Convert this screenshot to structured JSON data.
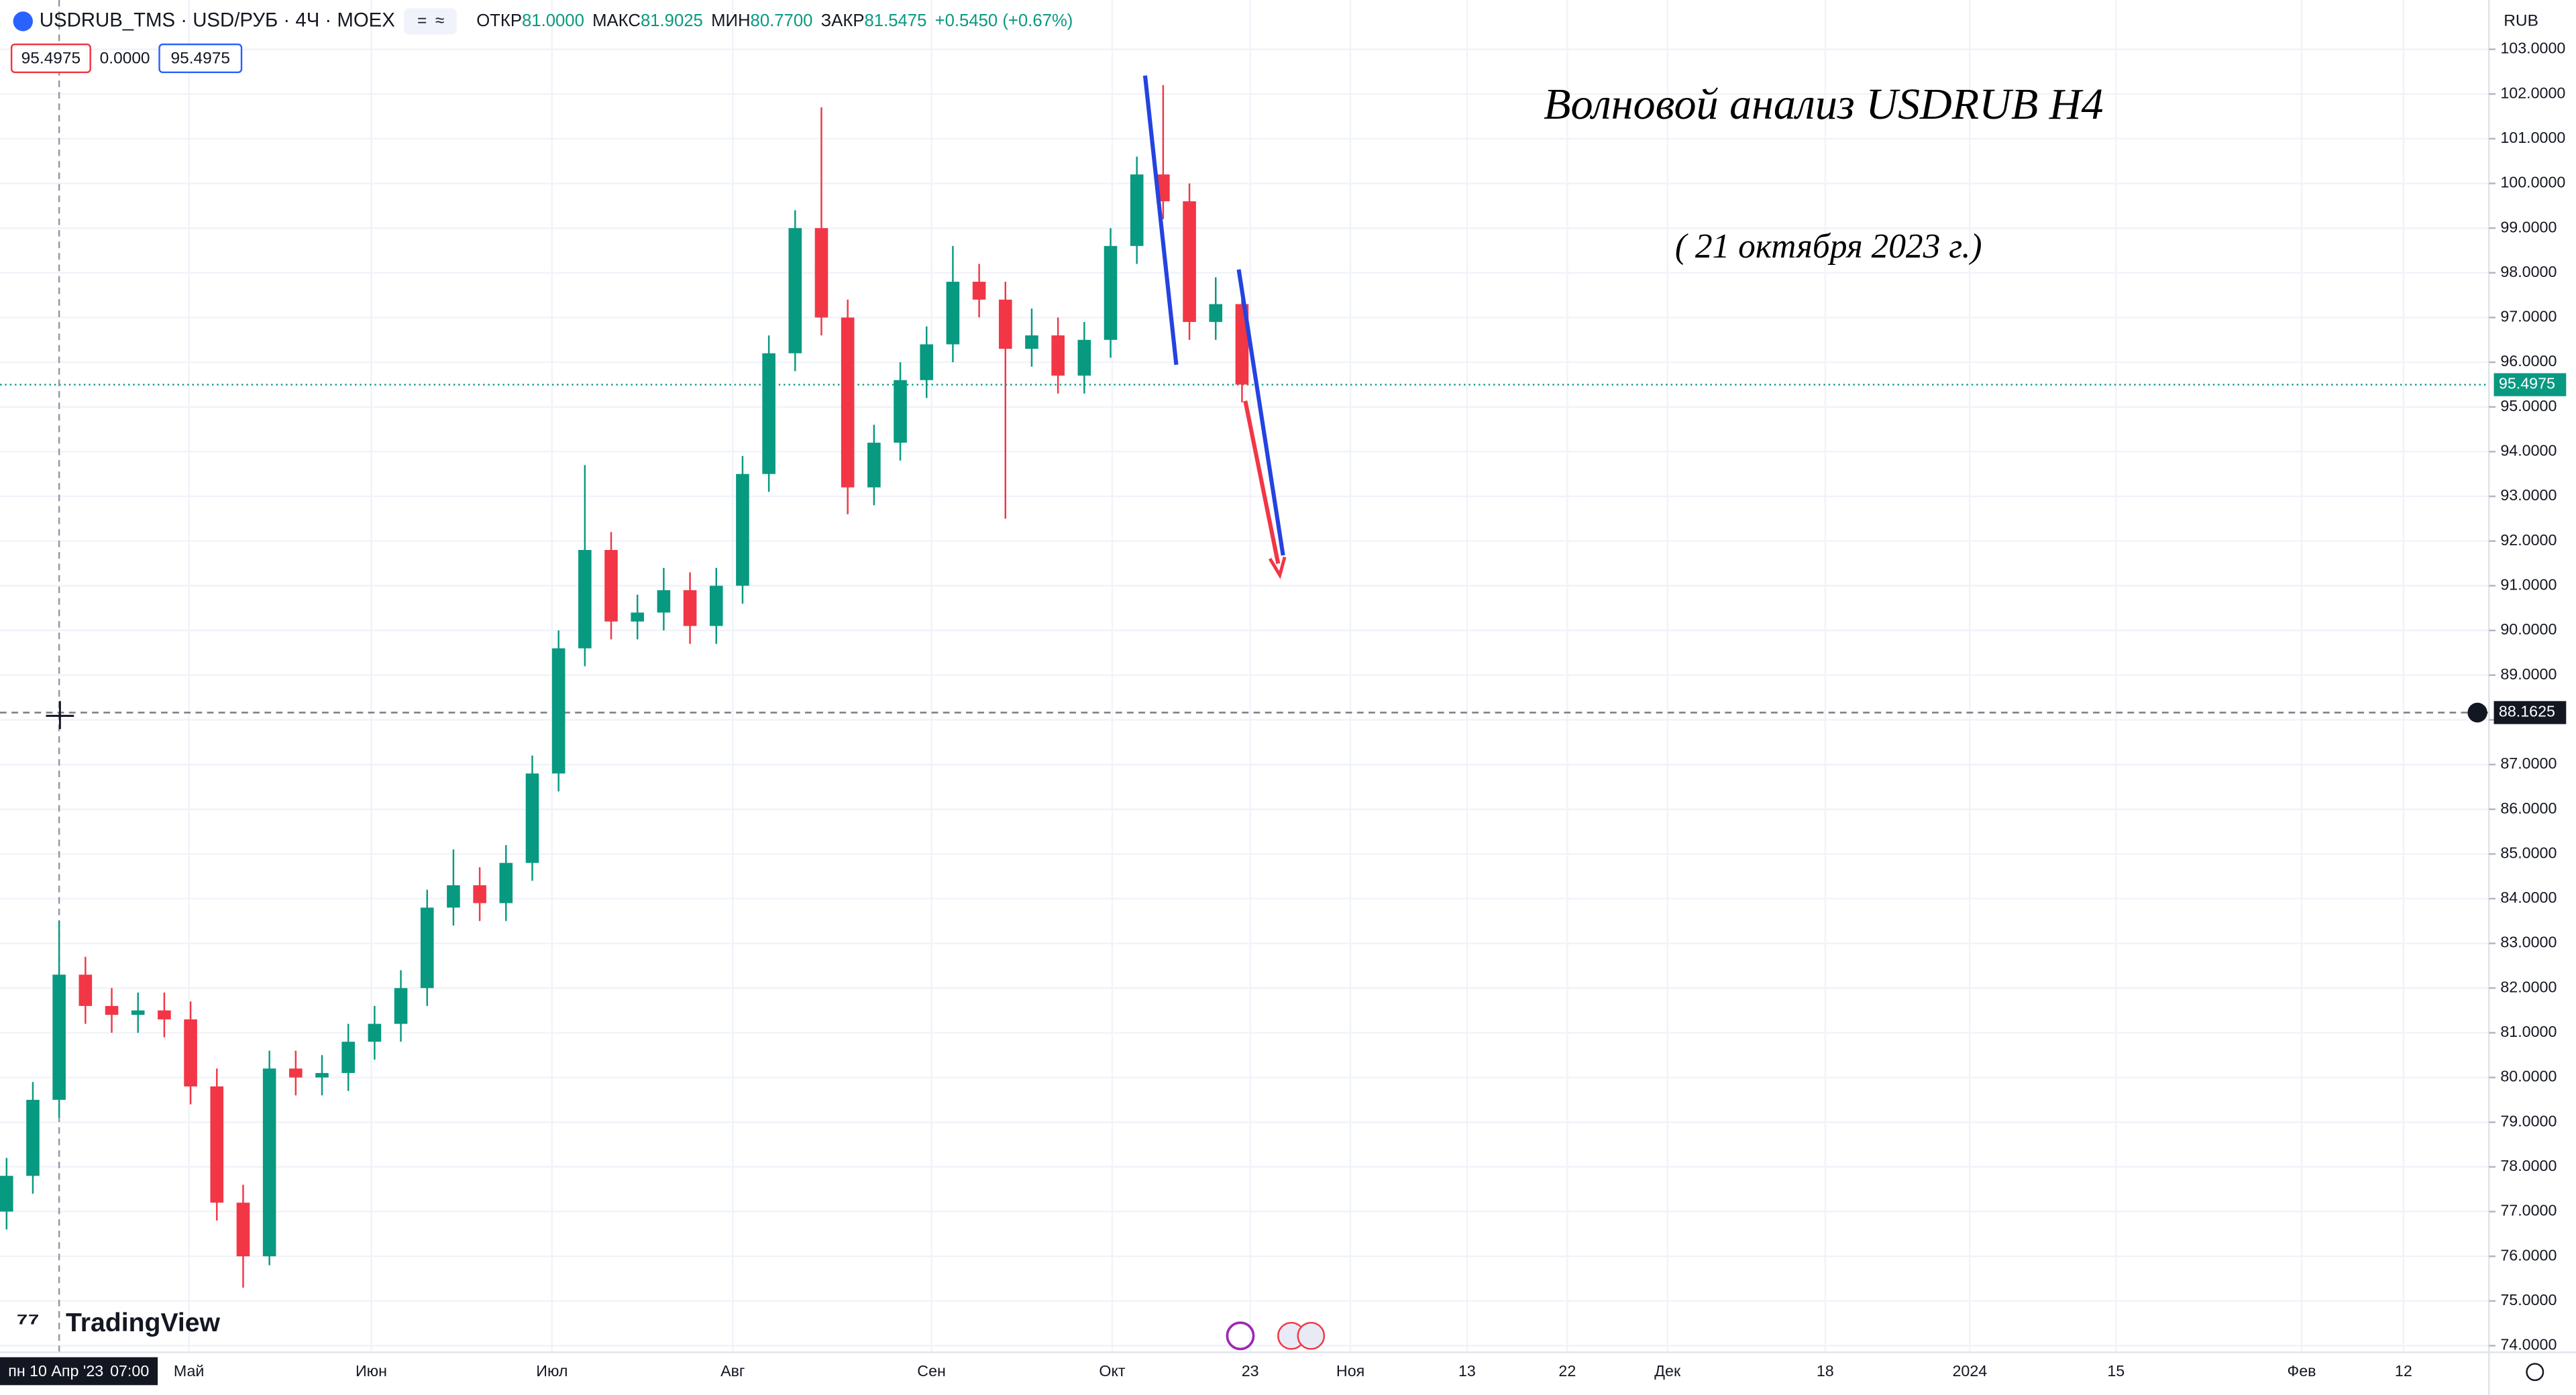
{
  "chart_data": {
    "type": "candlestick",
    "title": "USDRUB_TMS · USD/РУБ · 4Ч · MOEX",
    "stats": [
      {
        "label": "ОТКР",
        "value": "81.0000"
      },
      {
        "label": "МАКС",
        "value": "81.9025"
      },
      {
        "label": "МИН",
        "value": "80.7700"
      },
      {
        "label": "ЗАКР",
        "value": "81.5475"
      },
      {
        "label": "",
        "value": "+0.5450 (+0.67%)"
      }
    ],
    "order_panel": [
      "95.4975",
      "0.0000",
      "95.4975"
    ],
    "annotations": [
      "Волновой анализ USDRUB H4",
      "( 21 октября 2023 г.)"
    ],
    "currency": "RUB",
    "brand": "TradingView",
    "crosshair_date": "пн 10 Апр '23",
    "crosshair_time": "07:00",
    "last_price": 95.4975,
    "crosshair_price": 88.1625,
    "up_color": "#089981",
    "down_color": "#f23645",
    "open": [
      77.0,
      77.8,
      79.5,
      82.3,
      81.6,
      81.4,
      81.5,
      81.3,
      79.8,
      77.2,
      76.0,
      80.2,
      80.0,
      80.1,
      80.8,
      81.2,
      82.0,
      83.8,
      84.3,
      83.9,
      84.8,
      86.8,
      89.6,
      91.8,
      90.2,
      90.4,
      90.9,
      90.1,
      91.0,
      93.5,
      96.2,
      99.0,
      97.0,
      93.2,
      94.2,
      95.6,
      96.4,
      97.8,
      97.4,
      96.3,
      96.6,
      95.7,
      96.5,
      98.6,
      100.2,
      99.6,
      96.9,
      97.3
    ],
    "high": [
      78.2,
      79.9,
      83.5,
      82.7,
      82.0,
      81.9,
      81.9,
      81.7,
      80.2,
      77.6,
      80.6,
      80.6,
      80.5,
      81.2,
      81.6,
      82.4,
      84.2,
      85.1,
      84.7,
      85.2,
      87.2,
      90.0,
      93.7,
      92.2,
      90.8,
      91.4,
      91.3,
      91.4,
      93.9,
      96.6,
      99.4,
      101.7,
      97.4,
      94.6,
      96.0,
      96.8,
      98.6,
      98.2,
      97.8,
      97.2,
      97.0,
      96.9,
      99.0,
      100.6,
      102.2,
      100.0,
      97.9,
      97.6
    ],
    "low": [
      76.6,
      77.4,
      79.1,
      81.2,
      81.0,
      81.0,
      80.9,
      79.4,
      76.8,
      75.3,
      75.8,
      79.6,
      79.6,
      79.7,
      80.4,
      80.8,
      81.6,
      83.4,
      83.5,
      83.5,
      84.4,
      86.4,
      89.2,
      89.8,
      89.8,
      90.0,
      89.7,
      89.7,
      90.6,
      93.1,
      95.8,
      96.6,
      92.6,
      92.8,
      93.8,
      95.2,
      96.0,
      97.0,
      92.5,
      95.9,
      95.3,
      95.3,
      96.1,
      98.2,
      99.2,
      96.5,
      96.5,
      95.1
    ],
    "close": [
      77.8,
      79.5,
      82.3,
      81.6,
      81.4,
      81.5,
      81.3,
      79.8,
      77.2,
      76.0,
      80.2,
      80.0,
      80.1,
      80.8,
      81.2,
      82.0,
      83.8,
      84.3,
      83.9,
      84.8,
      86.8,
      89.6,
      91.8,
      90.2,
      90.4,
      90.9,
      90.1,
      91.0,
      93.5,
      96.2,
      99.0,
      97.0,
      93.2,
      94.2,
      95.6,
      96.4,
      97.8,
      97.4,
      96.3,
      96.6,
      95.7,
      96.5,
      98.6,
      100.2,
      99.6,
      96.9,
      97.3,
      95.5
    ],
    "x_labels": [
      "Май",
      "Июн",
      "Июл",
      "Авг",
      "Сен",
      "Окт",
      "23",
      "Ноя",
      "13",
      "22",
      "Дек",
      "18",
      "2024",
      "15",
      "Фев",
      "12"
    ],
    "ylim": [
      74,
      103
    ],
    "yticks": [
      {
        "value": 74,
        "label": "74.0000"
      },
      {
        "value": 75,
        "label": "75.0000"
      },
      {
        "value": 76,
        "label": "76.0000"
      },
      {
        "value": 77,
        "label": "77.0000"
      },
      {
        "value": 78,
        "label": "78.0000"
      },
      {
        "value": 79,
        "label": "79.0000"
      },
      {
        "value": 80,
        "label": "80.0000"
      },
      {
        "value": 81,
        "label": "81.0000"
      },
      {
        "value": 82,
        "label": "82.0000"
      },
      {
        "value": 83,
        "label": "83.0000"
      },
      {
        "value": 84,
        "label": "84.0000"
      },
      {
        "value": 85,
        "label": "85.0000"
      },
      {
        "value": 86,
        "label": "86.0000"
      },
      {
        "value": 87,
        "label": "87.0000"
      },
      {
        "value": 88,
        "label": "88.0000"
      },
      {
        "value": 89,
        "label": "89.0000"
      },
      {
        "value": 90,
        "label": "90.0000"
      },
      {
        "value": 91,
        "label": "91.0000"
      },
      {
        "value": 92,
        "label": "92.0000"
      },
      {
        "value": 93,
        "label": "93.0000"
      },
      {
        "value": 94,
        "label": "94.0000"
      },
      {
        "value": 95,
        "label": "95.0000"
      },
      {
        "value": 96,
        "label": "96.0000"
      },
      {
        "value": 97,
        "label": "97.0000"
      },
      {
        "value": 98,
        "label": "98.0000"
      },
      {
        "value": 99,
        "label": "99.0000"
      },
      {
        "value": 100,
        "label": "100.0000"
      },
      {
        "value": 101,
        "label": "101.0000"
      },
      {
        "value": 102,
        "label": "102.0000"
      },
      {
        "value": 103,
        "label": "103.0000"
      }
    ],
    "grid": true
  }
}
